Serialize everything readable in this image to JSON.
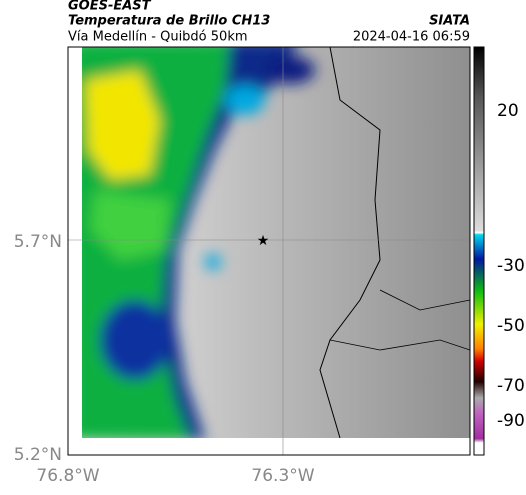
{
  "header": {
    "title": "GOES-EAST",
    "subtitle": "Temperatura de Brillo CH13",
    "source": "SIATA",
    "region": "Vía Medellín - Quibdó 50km",
    "datetime": "2024-04-16 06:59"
  },
  "axes": {
    "lat_ticks": [
      "5.7°N",
      "5.2°N"
    ],
    "lon_ticks": [
      "76.8°W",
      "76.3°W"
    ]
  },
  "colorbar": {
    "ticks": [
      20,
      -30,
      -50,
      -70,
      -90
    ]
  }
}
